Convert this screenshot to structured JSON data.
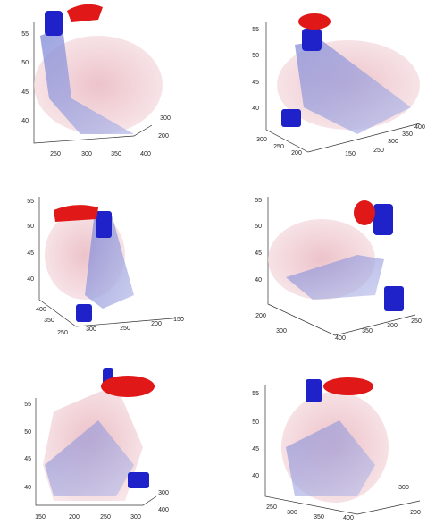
{
  "panels": [
    {
      "ticks": [
        "55",
        "50",
        "45",
        "40",
        "250",
        "300",
        "350",
        "400",
        "300",
        "200"
      ]
    },
    {
      "ticks": [
        "55",
        "50",
        "45",
        "40",
        "300",
        "250",
        "200",
        "150",
        "250",
        "300",
        "350",
        "400"
      ]
    },
    {
      "ticks": [
        "55",
        "50",
        "45",
        "40",
        "400",
        "350",
        "250",
        "300",
        "250",
        "200",
        "150"
      ]
    },
    {
      "ticks": [
        "55",
        "50",
        "45",
        "40",
        "200",
        "300",
        "400",
        "350",
        "300",
        "250"
      ]
    },
    {
      "ticks": [
        "55",
        "50",
        "45",
        "40",
        "150",
        "200",
        "250",
        "300",
        "300",
        "400"
      ]
    },
    {
      "ticks": [
        "55",
        "50",
        "45",
        "40",
        "250",
        "300",
        "350",
        "400",
        "200",
        "300"
      ]
    }
  ]
}
